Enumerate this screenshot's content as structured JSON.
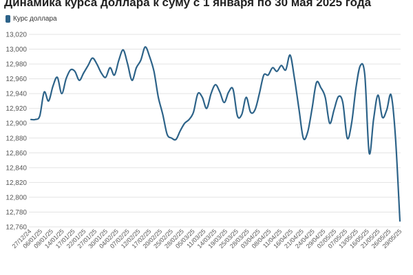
{
  "chart_data": {
    "type": "line",
    "title": "Динамика курса доллара к суму с 1 января по 30 мая 2025 года",
    "xlabel": "",
    "ylabel": "",
    "legend": {
      "position": "top-left"
    },
    "grid": true,
    "ylim": [
      12760,
      13020
    ],
    "yticks": [
      "12,760",
      "12,780",
      "12,800",
      "12,820",
      "12,840",
      "12,860",
      "12,880",
      "12,900",
      "12,920",
      "12,940",
      "12,960",
      "12,980",
      "13,000",
      "13,020"
    ],
    "xticks": [
      "27/12/24",
      "06/01/25",
      "09/01/25",
      "14/01/25",
      "17/01/25",
      "22/01/25",
      "27/01/25",
      "30/01/25",
      "04/02/25",
      "07/02/25",
      "12/02/25",
      "17/02/25",
      "20/02/25",
      "25/02/25",
      "28/02/25",
      "05/03/25",
      "11/03/25",
      "14/03/25",
      "19/03/25",
      "25/03/25",
      "28/03/25",
      "03/04/25",
      "08/04/25",
      "11/04/25",
      "16/04/25",
      "21/04/25",
      "24/04/25",
      "29/04/25",
      "02/05/25",
      "07/05/25",
      "13/05/25",
      "16/05/25",
      "21/05/25",
      "26/05/25",
      "29/05/25"
    ],
    "series": [
      {
        "name": "Курс доллара",
        "color": "#2d6389",
        "values": [
          12905,
          12905,
          12910,
          12942,
          12930,
          12950,
          12962,
          12940,
          12960,
          12972,
          12970,
          12958,
          12968,
          12978,
          12988,
          12980,
          12968,
          12962,
          12975,
          12965,
          12985,
          12999,
          12980,
          12958,
          12975,
          12985,
          13003,
          12990,
          12970,
          12935,
          12912,
          12885,
          12880,
          12878,
          12890,
          12900,
          12905,
          12915,
          12940,
          12935,
          12920,
          12940,
          12952,
          12942,
          12928,
          12942,
          12946,
          12910,
          12912,
          12935,
          12915,
          12918,
          12940,
          12965,
          12965,
          12975,
          12970,
          12978,
          12972,
          12992,
          12960,
          12920,
          12880,
          12888,
          12920,
          12955,
          12948,
          12935,
          12900,
          12918,
          12936,
          12928,
          12880,
          12900,
          12948,
          12978,
          12965,
          12860,
          12905,
          12938,
          12908,
          12918,
          12938,
          12880,
          12768
        ]
      }
    ]
  }
}
